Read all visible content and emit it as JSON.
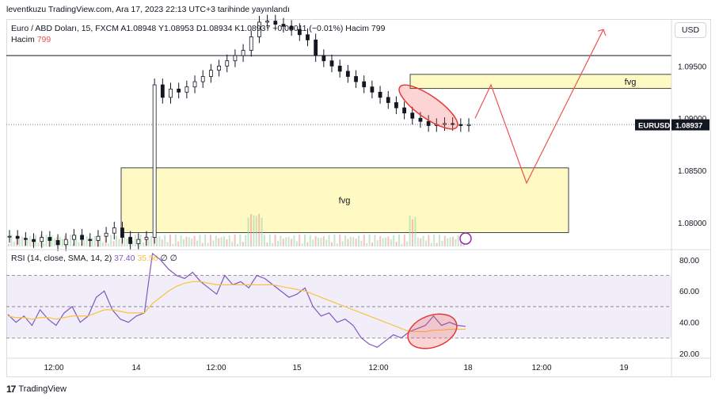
{
  "caption": "leventkuzu TradingView.com, Ara 17, 2023 22:13 UTC+3 tarihinde yayınlandı",
  "legend": {
    "symbol": "Euro / ABD Doları, 15, FXCM",
    "ohlc": "A1.08948  Y1.08953  D1.08934  K1.08937  −0.00011 (−0.01%)  Hacim 799",
    "volume_label": "Hacim",
    "volume_value": "799",
    "rsi_label": "RSI (14, close, SMA, 14, 2)",
    "rsi_value": "37.40",
    "rsi_sma_value": "35.56",
    "rsi_extra": "∅  ∅"
  },
  "currency_button": "USD",
  "footer_brand": "TradingView",
  "chart_data": [
    {
      "type": "candlestick",
      "symbol": "EURUSD",
      "timeframe": "15",
      "ylim": [
        1.0775,
        1.0995
      ],
      "yticks": [
        "1.09500",
        "1.09000",
        "1.08500",
        "1.08000"
      ],
      "xticks": [
        "12:00",
        "14",
        "12:00",
        "15",
        "12:00",
        "18",
        "12:00",
        "19"
      ],
      "last_price": 1.08937,
      "last_price_label": "EURUSD",
      "last_price_text": "1.08937",
      "close_series": [
        1.0787,
        1.0785,
        1.0784,
        1.0782,
        1.0786,
        1.0783,
        1.0779,
        1.0784,
        1.0788,
        1.0784,
        1.0783,
        1.0787,
        1.079,
        1.0795,
        1.0786,
        1.078,
        1.0784,
        1.0786,
        1.0932,
        1.092,
        1.0928,
        1.0925,
        1.093,
        1.0935,
        1.094,
        1.0946,
        1.095,
        1.0955,
        1.096,
        1.0965,
        1.0978,
        1.0992,
        1.0993,
        1.099,
        1.0988,
        1.0985,
        1.098,
        1.0975,
        1.096,
        1.0955,
        1.095,
        1.0945,
        1.094,
        1.0935,
        1.093,
        1.0925,
        1.092,
        1.0915,
        1.091,
        1.0905,
        1.09,
        1.0897,
        1.0893,
        1.0894,
        1.0895,
        1.0894,
        1.0893,
        1.0894
      ],
      "zones": [
        {
          "label": "fvg",
          "top": 1.08525,
          "bottom": 1.07905
        },
        {
          "label": "fvg",
          "top": 1.0942,
          "bottom": 1.09285
        }
      ],
      "horizontal_lines": [
        1.096,
        1.0894
      ],
      "projection": [
        1.09,
        1.0932,
        1.0838,
        1.0985
      ]
    },
    {
      "type": "line",
      "title": "RSI (14, close, SMA, 14, 2)",
      "ylim": [
        17,
        86
      ],
      "yticks": [
        "80.00",
        "60.00",
        "40.00",
        "20.00"
      ],
      "bands": [
        30,
        50,
        70
      ],
      "series": [
        {
          "name": "RSI",
          "values": [
            45,
            40,
            44,
            38,
            48,
            42,
            38,
            46,
            50,
            40,
            44,
            56,
            60,
            48,
            42,
            40,
            44,
            46,
            84,
            80,
            74,
            70,
            68,
            72,
            66,
            62,
            58,
            70,
            64,
            66,
            62,
            70,
            68,
            64,
            60,
            56,
            58,
            62,
            50,
            44,
            46,
            40,
            42,
            38,
            30,
            26,
            24,
            28,
            32,
            30,
            34,
            36,
            38,
            44,
            38,
            40,
            38,
            37.4
          ]
        },
        {
          "name": "SMA",
          "values": [
            44,
            43,
            43,
            42,
            43,
            43,
            42,
            43,
            44,
            44,
            44,
            46,
            48,
            48,
            47,
            46,
            46,
            46,
            52,
            56,
            60,
            63,
            65,
            66,
            66,
            65,
            64,
            64,
            64,
            64,
            64,
            64,
            64,
            64,
            63,
            62,
            61,
            60,
            58,
            56,
            54,
            52,
            50,
            48,
            46,
            44,
            42,
            40,
            38,
            36,
            34,
            34,
            34,
            35,
            35,
            35.5,
            35.5,
            35.56
          ]
        }
      ]
    }
  ]
}
